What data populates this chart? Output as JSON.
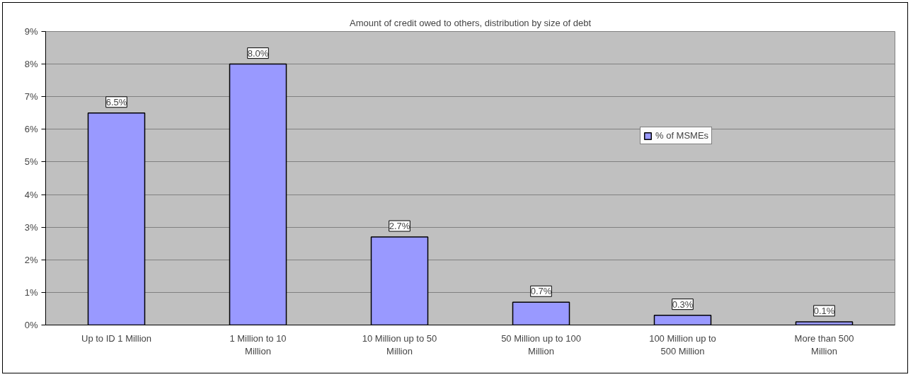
{
  "chart_data": {
    "type": "bar",
    "title": "Amount of credit owed to others, distribution by size of debt",
    "categories": [
      "Up to ID 1 Million",
      "1 Million to 10 Million",
      "10 Million up to 50 Million",
      "50 Million up to 100 Million",
      "100 Million up to 500 Million",
      "More than 500 Million"
    ],
    "series": [
      {
        "name": "% of MSMEs",
        "color": "#9999ff",
        "values": [
          6.5,
          8.0,
          2.7,
          0.7,
          0.3,
          0.1
        ],
        "value_labels": [
          "6.5%",
          "8.0%",
          "2.7%",
          "0.7%",
          "0.3%",
          "0.1%"
        ]
      }
    ],
    "ylim": [
      0,
      9
    ],
    "yticks": [
      {
        "value": 0,
        "label": "0%"
      },
      {
        "value": 1,
        "label": "1%"
      },
      {
        "value": 2,
        "label": "2%"
      },
      {
        "value": 3,
        "label": "3%"
      },
      {
        "value": 4,
        "label": "4%"
      },
      {
        "value": 5,
        "label": "5%"
      },
      {
        "value": 6,
        "label": "6%"
      },
      {
        "value": 7,
        "label": "7%"
      },
      {
        "value": 8,
        "label": "8%"
      },
      {
        "value": 9,
        "label": "9%"
      }
    ],
    "grid": "y",
    "legend": "top right"
  }
}
